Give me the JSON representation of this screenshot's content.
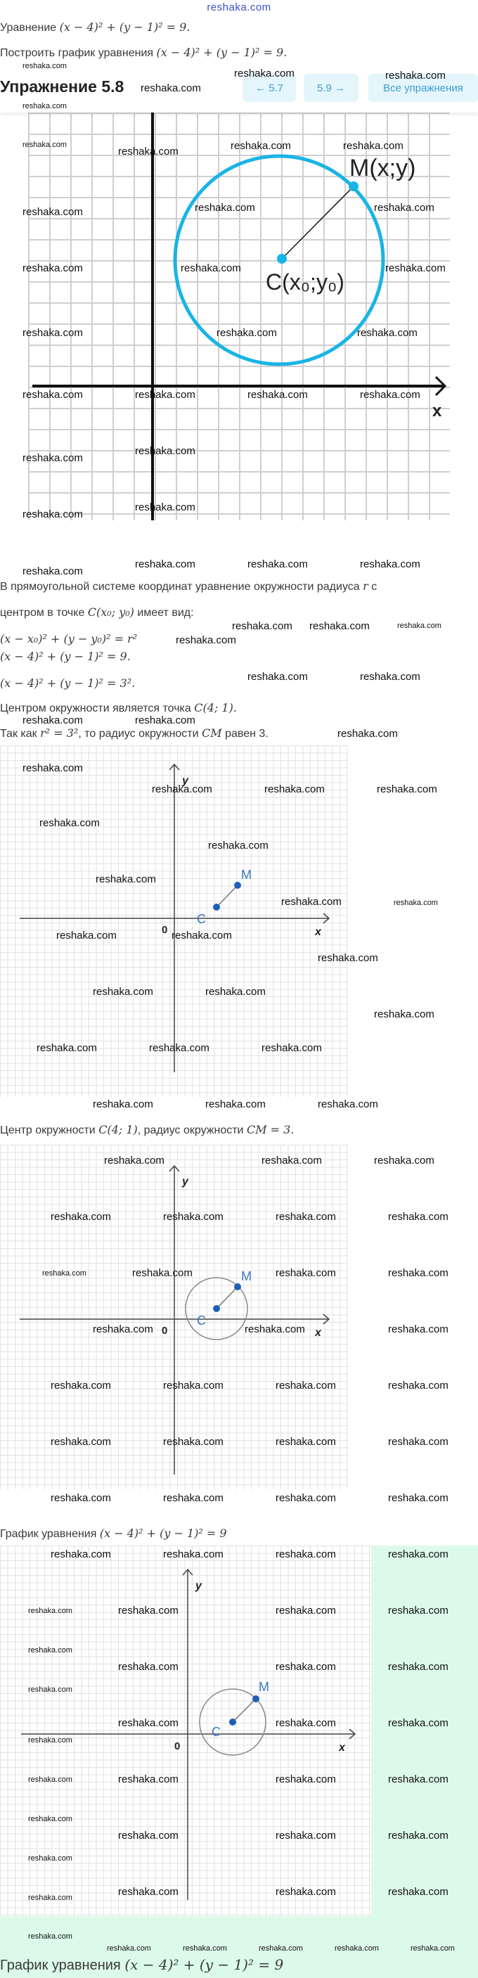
{
  "watermark": "reshaka.com",
  "logo": "reshaka.com",
  "intro": {
    "line1_text": "Уравнение",
    "line1_math": "(x − 4)² + (y − 1)² = 9.",
    "line2_text": "Построить график уравнения",
    "line2_math": "(x − 4)² + (y − 1)² = 9."
  },
  "header": {
    "title": "Упражнение 5.8",
    "prev_label": "← 5.7",
    "next_label": "5.9 →",
    "all_label": "Все упражнения"
  },
  "figure1": {
    "point_m": "M(x;y)",
    "point_c": "C(x₀;y₀)",
    "x_label": "x"
  },
  "solution": {
    "p1": "В прямоугольной системе координат уравнение окружности радиуса",
    "p1_math": "r",
    "p1_tail": "с",
    "p2": "центром в точке",
    "p2_math": "C(x₀; y₀)",
    "p2_tail": "имеет вид:",
    "f1": "(x − x₀)² + (y − y₀)² = r²",
    "f2": "(x − 4)² + (y − 1)² = 9.",
    "f3": "(x − 4)² + (y − 1)² = 3².",
    "p3": "Центром окружности является точка",
    "p3_math": "C(4; 1).",
    "p4": "Так как",
    "p4_math": "r² = 3²",
    "p4_mid": ", то радиус окружности",
    "p4_math2": "CM",
    "p4_tail": "равен 3."
  },
  "figure_labels": {
    "c": "C",
    "m": "M",
    "x": "x",
    "y": "y",
    "origin": "0"
  },
  "center_text": {
    "t1": "Центр окружности",
    "m1": "C(4; 1)",
    "t2": ", радиус окружности",
    "m2": "CM = 3."
  },
  "graph_caption": {
    "text": "График уравнения",
    "math": "(x − 4)² + (y − 1)² = 9"
  },
  "final_caption": {
    "text": "График уравнения",
    "math": "(x − 4)² + (y − 1)² = 9"
  },
  "colors": {
    "circle_main": "#19b4e6",
    "point_blue": "#1f5fb8",
    "green_bg": "#dcfaea",
    "nav_bg": "#e4f5fb"
  }
}
